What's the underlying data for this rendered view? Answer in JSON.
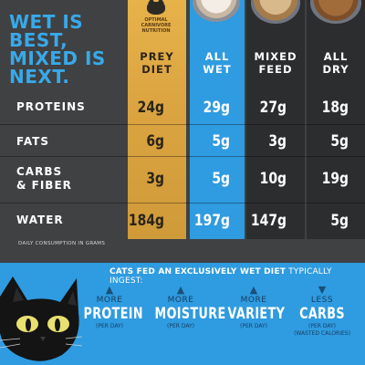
{
  "headline": [
    "WET IS",
    "BEST,",
    "MIXED IS",
    "NEXT."
  ],
  "seal": {
    "text_1": "OPTIMAL",
    "text_2": "CARNIVORE",
    "text_3": "NUTRITION"
  },
  "columns": [
    {
      "line1": "PREY",
      "line2": "DIET"
    },
    {
      "line1": "ALL",
      "line2": "WET"
    },
    {
      "line1": "MIXED",
      "line2": "FEED"
    },
    {
      "line1": "ALL",
      "line2": "DRY"
    }
  ],
  "rows": [
    {
      "label_1": "PROTEINS",
      "label_2": "",
      "values": [
        "24g",
        "29g",
        "27g",
        "18g"
      ]
    },
    {
      "label_1": "FATS",
      "label_2": "",
      "values": [
        "6g",
        "5g",
        "3g",
        "5g"
      ]
    },
    {
      "label_1": "CARBS",
      "label_2": "& FIBER",
      "values": [
        "3g",
        "5g",
        "10g",
        "19g"
      ]
    },
    {
      "label_1": "WATER",
      "label_2": "",
      "values": [
        "184g",
        "197g",
        "147g",
        "5g"
      ]
    }
  ],
  "footnote": "DAILY CONSUMPTION IN GRAMS",
  "banner": {
    "bold": "CATS FED AN EXCLUSIVELY WET DIET",
    "rest": " TYPICALLY INGEST:"
  },
  "benefits": [
    {
      "arrow": "▲",
      "small": "MORE",
      "big": "PROTEIN",
      "note_1": "(PER DAY)",
      "note_2": ""
    },
    {
      "arrow": "▲",
      "small": "MORE",
      "big": "MOISTURE",
      "note_1": "(PER DAY)",
      "note_2": ""
    },
    {
      "arrow": "▲",
      "small": "MORE",
      "big": "VARIETY",
      "note_1": "(PER DAY)",
      "note_2": ""
    },
    {
      "arrow": "▼",
      "small": "LESS",
      "big": "CARBS",
      "note_1": "(PER DAY)",
      "note_2": "(WASTED CALORIES)"
    }
  ],
  "colors": {
    "blue": "#2f9be0",
    "gold": "#dca542",
    "dark": "#404142"
  }
}
